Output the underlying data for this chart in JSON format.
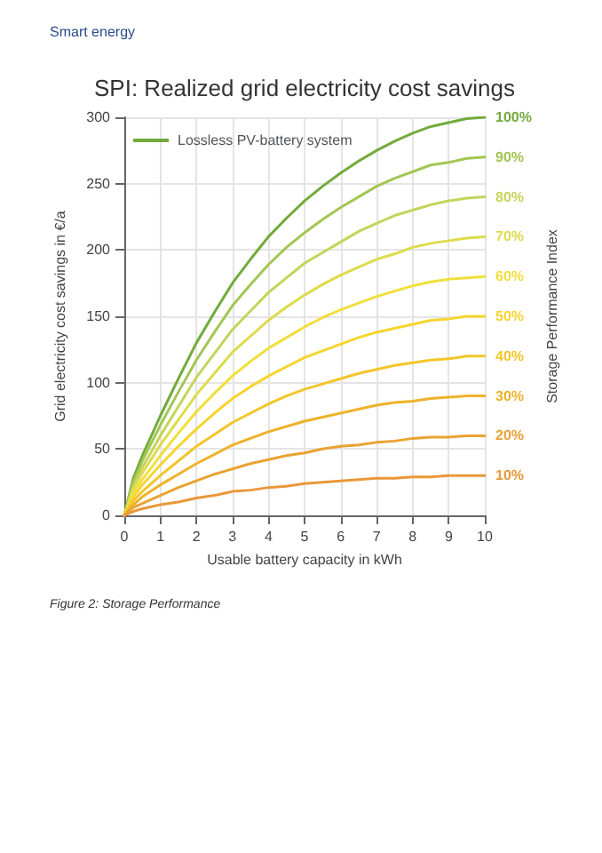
{
  "chart_data": {
    "type": "line",
    "title": "SPI: Realized grid electricity cost savings",
    "annotations": [
      "Smart energy",
      "Figure 2: Storage Performance",
      "100%"
    ],
    "xlabel": "Usable battery capacity in kWh",
    "ylabel": "Grid electricity cost savings in €/a",
    "y2label": "Storage Performance Index",
    "x": [
      0,
      0.25,
      0.5,
      1,
      1.5,
      2,
      2.5,
      3,
      3.5,
      4,
      4.5,
      5,
      5.5,
      6,
      6.5,
      7,
      7.5,
      8,
      8.5,
      9,
      9.5,
      10
    ],
    "series": [
      {
        "name": "Lossless PV-battery system",
        "color": "#72ab3c",
        "values": [
          0,
          28,
          45,
          75,
          103,
          130,
          153,
          175,
          193,
          210,
          224,
          237,
          248,
          258,
          267,
          275,
          282,
          288,
          293,
          296,
          299,
          300
        ]
      },
      {
        "name": "90%",
        "color": "#a3c653",
        "values": [
          0,
          25,
          41,
          68,
          93,
          117,
          138,
          158,
          174,
          189,
          202,
          213,
          223,
          232,
          240,
          248,
          254,
          259,
          264,
          266,
          269,
          270
        ]
      },
      {
        "name": "80%",
        "color": "#c5d45a",
        "values": [
          0,
          22,
          36,
          60,
          82,
          104,
          122,
          140,
          154,
          168,
          179,
          190,
          198,
          206,
          214,
          220,
          226,
          230,
          234,
          237,
          239,
          240
        ]
      },
      {
        "name": "70%",
        "color": "#dcdc4c",
        "values": [
          0,
          20,
          32,
          53,
          72,
          91,
          107,
          123,
          135,
          147,
          157,
          166,
          174,
          181,
          187,
          193,
          197,
          202,
          205,
          207,
          209,
          210
        ]
      },
      {
        "name": "60%",
        "color": "#f0df3c",
        "values": [
          0,
          17,
          27,
          45,
          62,
          78,
          92,
          105,
          116,
          126,
          134,
          142,
          149,
          155,
          160,
          165,
          169,
          173,
          176,
          178,
          179,
          180
        ]
      },
      {
        "name": "50%",
        "color": "#f5d52e",
        "values": [
          0,
          14,
          23,
          38,
          52,
          65,
          77,
          88,
          97,
          105,
          112,
          119,
          124,
          129,
          134,
          138,
          141,
          144,
          147,
          148,
          150,
          150
        ]
      },
      {
        "name": "40%",
        "color": "#f3c52a",
        "values": [
          0,
          11,
          18,
          30,
          41,
          52,
          61,
          70,
          77,
          84,
          90,
          95,
          99,
          103,
          107,
          110,
          113,
          115,
          117,
          118,
          120,
          120
        ]
      },
      {
        "name": "30%",
        "color": "#eeb22a",
        "values": [
          0,
          8,
          14,
          23,
          31,
          39,
          46,
          53,
          58,
          63,
          67,
          71,
          74,
          77,
          80,
          83,
          85,
          86,
          88,
          89,
          90,
          90
        ]
      },
      {
        "name": "20%",
        "color": "#eaa232",
        "values": [
          0,
          6,
          9,
          15,
          21,
          26,
          31,
          35,
          39,
          42,
          45,
          47,
          50,
          52,
          53,
          55,
          56,
          58,
          59,
          59,
          60,
          60
        ]
      },
      {
        "name": "10%",
        "color": "#e8983a",
        "values": [
          0,
          3,
          5,
          8,
          10,
          13,
          15,
          18,
          19,
          21,
          22,
          24,
          25,
          26,
          27,
          28,
          28,
          29,
          29,
          30,
          30,
          30
        ]
      }
    ],
    "xlim": [
      0,
      10
    ],
    "xticks": [
      0,
      1,
      2,
      3,
      4,
      5,
      6,
      7,
      8,
      9,
      10
    ],
    "ylim": [
      0,
      300
    ],
    "yticks": [
      0,
      50,
      100,
      150,
      200,
      250,
      300
    ],
    "grid": true,
    "legend": "top left",
    "marker": "none",
    "line_style": "solid"
  }
}
